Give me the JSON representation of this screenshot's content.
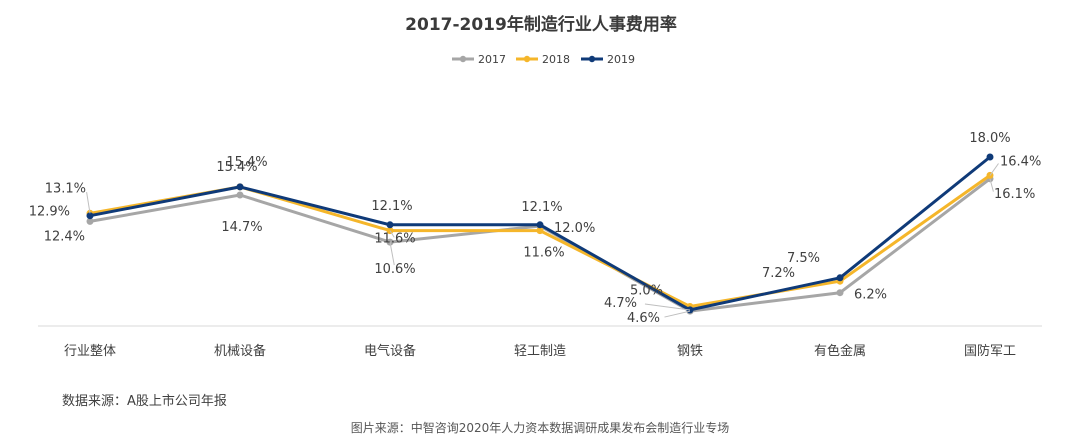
{
  "chart_data": {
    "type": "line",
    "title": "2017-2019年制造行业人事费用率",
    "categories": [
      "行业整体",
      "机械设备",
      "电气设备",
      "轻工制造",
      "钢铁",
      "有色金属",
      "国防军工"
    ],
    "series": [
      {
        "name": "2017",
        "color": "#a6a6a6",
        "values": [
          12.4,
          14.7,
          10.6,
          12.0,
          4.6,
          6.2,
          16.1
        ],
        "labels": [
          "12.4%",
          "14.7%",
          "10.6%",
          "12.0%",
          "4.6%",
          "6.2%",
          "16.1%"
        ]
      },
      {
        "name": "2018",
        "color": "#f5b62a",
        "values": [
          13.1,
          15.4,
          11.6,
          11.6,
          5.0,
          7.2,
          16.4
        ],
        "labels": [
          "13.1%",
          "15.4%",
          "11.6%",
          "11.6%",
          "5.0%",
          "7.2%",
          "16.4%"
        ]
      },
      {
        "name": "2019",
        "color": "#0f3a78",
        "values": [
          12.9,
          15.4,
          12.1,
          12.1,
          4.7,
          7.5,
          18.0
        ],
        "labels": [
          "12.9%",
          "15.4%",
          "12.1%",
          "12.1%",
          "4.7%",
          "7.5%",
          "18.0%"
        ]
      }
    ],
    "legend_position": "top-center",
    "grid": false
  },
  "footer": {
    "data_source": "数据来源：A股上市公司年报",
    "image_source": "图片来源：中智咨询2020年人力资本数据调研成果发布会制造行业专场"
  }
}
